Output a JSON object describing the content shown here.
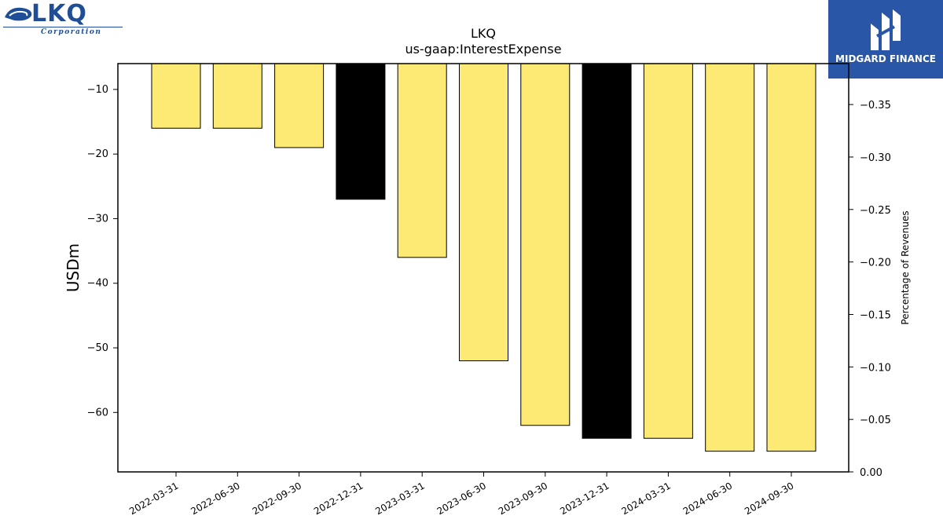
{
  "logos": {
    "lkq_word": "LKQ",
    "lkq_tagline": "Corporation",
    "midgard_name": "MIDGARD FINANCE"
  },
  "colors": {
    "bar_fill": "#fdea74",
    "bar_highlight": "#000000",
    "lkq_blue": "#1f4e99",
    "midgard_blue": "#2a56a8"
  },
  "chart_data": {
    "type": "bar",
    "title": "LKQ",
    "subtitle": "us-gaap:InterestExpense",
    "ylabel": "USDm",
    "ylabel_right": "Percentage of Revenues",
    "categories": [
      "2022-03-31",
      "2022-06-30",
      "2022-09-30",
      "2022-12-31",
      "2023-03-31",
      "2023-06-30",
      "2023-09-30",
      "2023-12-31",
      "2024-03-31",
      "2024-06-30",
      "2024-09-30"
    ],
    "values": [
      -16,
      -16,
      -19,
      -27,
      -36,
      -52,
      -62,
      -64,
      -64,
      -66,
      -66
    ],
    "highlight": [
      false,
      false,
      false,
      true,
      false,
      false,
      false,
      true,
      false,
      false,
      false
    ],
    "ylim": [
      -69.2,
      -6
    ],
    "yticks": [
      -10,
      -20,
      -30,
      -40,
      -50,
      -60
    ],
    "ytick_labels": [
      "−10",
      "−20",
      "−30",
      "−40",
      "−50",
      "−60"
    ],
    "y2lim": [
      0,
      -0.389
    ],
    "y2ticks": [
      0,
      -0.05,
      -0.1,
      -0.15,
      -0.2,
      -0.25,
      -0.3,
      -0.35
    ],
    "y2tick_labels": [
      "0.00",
      "−0.05",
      "−0.10",
      "−0.15",
      "−0.20",
      "−0.25",
      "−0.30",
      "−0.35"
    ],
    "grid": false
  }
}
